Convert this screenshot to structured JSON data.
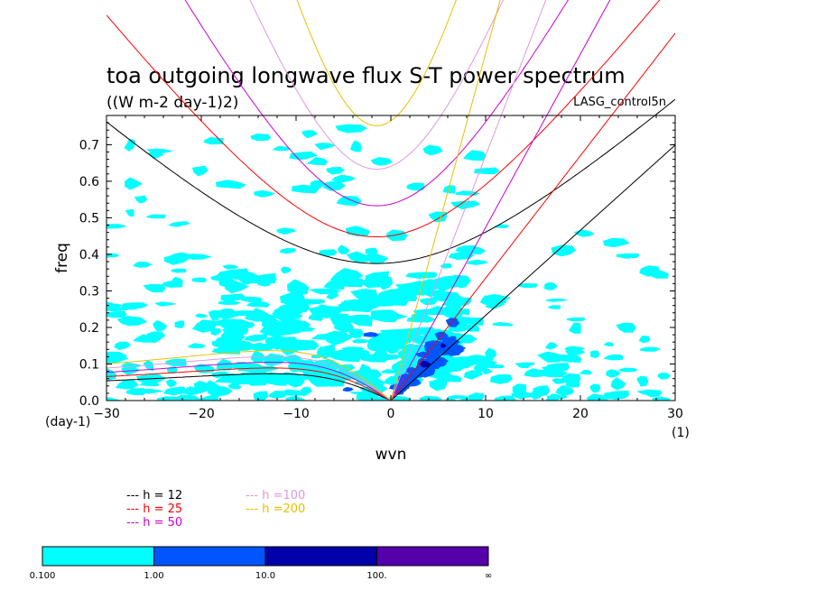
{
  "chart_data": {
    "type": "contour",
    "title": "toa outgoing longwave flux S-T power spectrum",
    "subtitle": "((W m-2 day-1)2)",
    "model": "LASG_control5n",
    "xlabel": "wvn",
    "ylabel": "freq",
    "x_unit": "(1)",
    "y_unit": "(day-1)",
    "xlim": [
      -30,
      30
    ],
    "ylim": [
      0,
      0.78
    ],
    "xticks": [
      -30,
      -20,
      -10,
      0,
      10,
      20,
      30
    ],
    "xtick_labels": [
      "−30",
      "−20",
      "−10",
      "0",
      "10",
      "20",
      "30"
    ],
    "yticks": [
      0.0,
      0.1,
      0.2,
      0.3,
      0.4,
      0.5,
      0.6,
      0.7
    ],
    "ytick_labels": [
      "0.0",
      "0.1",
      "0.2",
      "0.3",
      "0.4",
      "0.5",
      "0.6",
      "0.7"
    ],
    "dispersion_curves": [
      {
        "h": 12,
        "label": "h = 12",
        "color": "#000000"
      },
      {
        "h": 25,
        "label": "h = 25",
        "color": "#ff0000"
      },
      {
        "h": 50,
        "label": "h = 50",
        "color": "#cc00cc"
      },
      {
        "h": 100,
        "label": "h =100",
        "color": "#dd99dd"
      },
      {
        "h": 200,
        "label": "h =200",
        "color": "#e8c000"
      }
    ],
    "kelvin_freq_per_wvn": {
      "12": 0.0233,
      "25": 0.0335,
      "50": 0.0474,
      "100": 0.067,
      "200": 0.095
    },
    "ig_min_freq": {
      "12": 0.375,
      "25": 0.448,
      "50": 0.533,
      "100": 0.633,
      "200": 0.752
    },
    "rossby_max_freq": {
      "12": 0.07,
      "25": 0.085,
      "50": 0.1,
      "100": 0.115,
      "200": 0.13
    },
    "power_levels": [
      0.1,
      1.0,
      10.0,
      100.0
    ],
    "colorbar": {
      "labels": [
        "0.100",
        "1.00",
        "10.0",
        "100.",
        "∞"
      ],
      "colors": [
        "#00ffff",
        "#0055ff",
        "#0000aa",
        "#5500aa"
      ]
    },
    "power_regions": [
      {
        "level": 0,
        "x": [
          -30,
          30
        ],
        "y": [
          0.0,
          0.78
        ],
        "description": "scattered 0.1–1 patches across domain, concentrated at low freq"
      },
      {
        "level": 1,
        "x": [
          0,
          7
        ],
        "y": [
          0.0,
          0.2
        ],
        "description": "1–10 patch along Kelvin band"
      },
      {
        "level": 2,
        "x": [
          2,
          5
        ],
        "y": [
          0.08,
          0.12
        ],
        "description": "10–100 core"
      }
    ]
  }
}
